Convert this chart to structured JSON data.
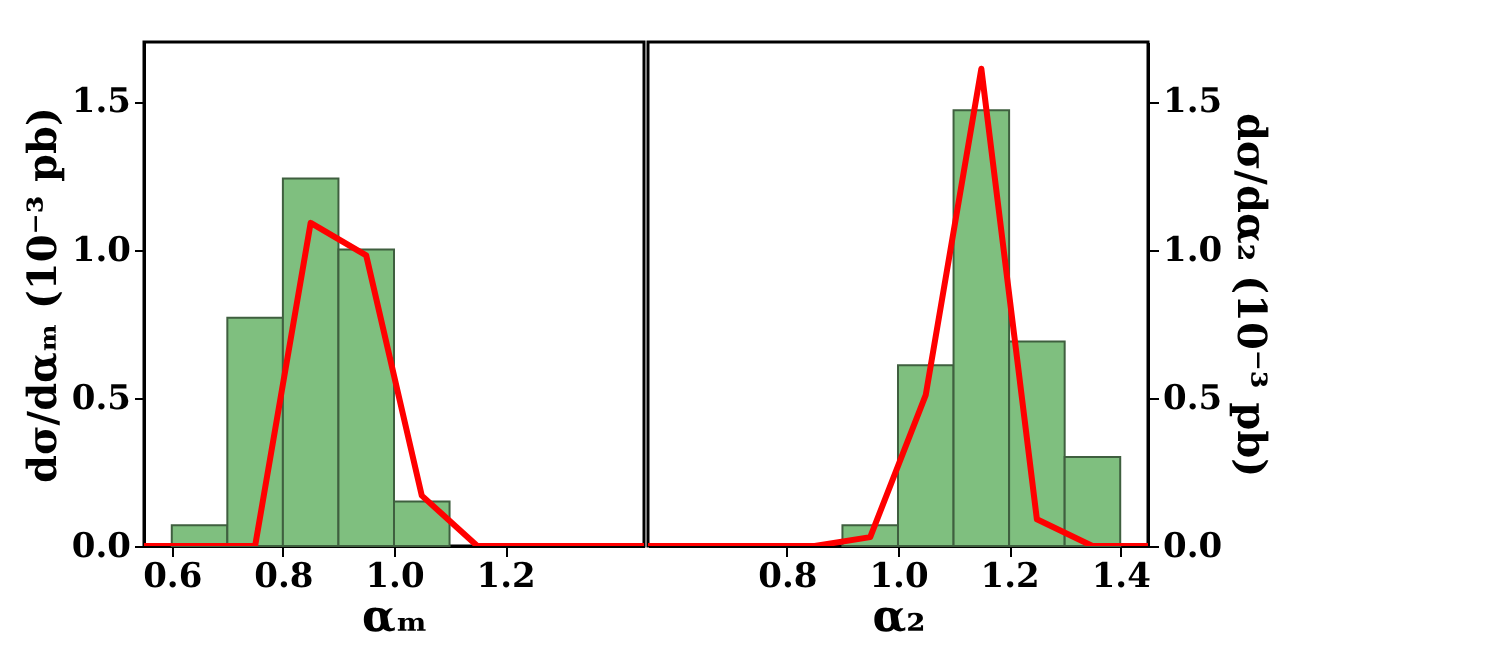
{
  "chart_data": [
    {
      "type": "histogram",
      "xlabel": "αₘ",
      "ylabel": "dσ/dαₘ (10⁻³ pb)",
      "xlim": [
        0.55,
        1.45
      ],
      "xticks": [
        0.6,
        0.8,
        {
          "value": 1,
          "label": "1.0"
        },
        1.2
      ],
      "ylim": [
        0,
        1.7
      ],
      "yticks": [
        {
          "value": 0,
          "label": "0.0"
        },
        0.5,
        {
          "value": 1,
          "label": "1.0"
        },
        1.5
      ],
      "series": [
        {
          "type": "histogram",
          "color": "#7fbf7f",
          "bins": [
            0.6,
            0.7,
            0.8,
            0.9,
            1.0,
            1.1
          ],
          "values": [
            0.07,
            0.77,
            1.24,
            1.0,
            0.15
          ]
        },
        {
          "type": "line",
          "color": "#ff0000",
          "x": [
            0.55,
            0.65,
            0.75,
            0.85,
            0.95,
            1.05,
            1.15,
            1.25,
            1.35,
            1.45
          ],
          "values": [
            0,
            0,
            0,
            1.09,
            0.98,
            0.17,
            0,
            0,
            0,
            0
          ]
        }
      ]
    },
    {
      "type": "histogram",
      "xlabel": "α₂",
      "y2label": "dσ/dα₂ (10⁻³ pb)",
      "xlim": [
        0.55,
        1.45
      ],
      "xticks": [
        0.8,
        {
          "value": 1,
          "label": "1.0"
        },
        1.2,
        1.4
      ],
      "y2lim": [
        0,
        1.7
      ],
      "y2ticks": [
        {
          "value": 0,
          "label": "0.0"
        },
        0.5,
        {
          "value": 1,
          "label": "1.0"
        },
        1.5
      ],
      "series": [
        {
          "type": "histogram",
          "axis": "y2",
          "color": "#7fbf7f",
          "bins": [
            0.9,
            1.0,
            1.1,
            1.2,
            1.3,
            1.4
          ],
          "values": [
            0.07,
            0.61,
            1.47,
            0.69,
            0.3
          ]
        },
        {
          "type": "line",
          "axis": "y2",
          "color": "#ff0000",
          "x": [
            0.55,
            0.65,
            0.75,
            0.85,
            0.95,
            1.05,
            1.15,
            1.25,
            1.35,
            1.45
          ],
          "values": [
            0,
            0,
            0,
            0,
            0.03,
            0.51,
            1.61,
            0.09,
            0,
            0
          ]
        }
      ]
    }
  ]
}
